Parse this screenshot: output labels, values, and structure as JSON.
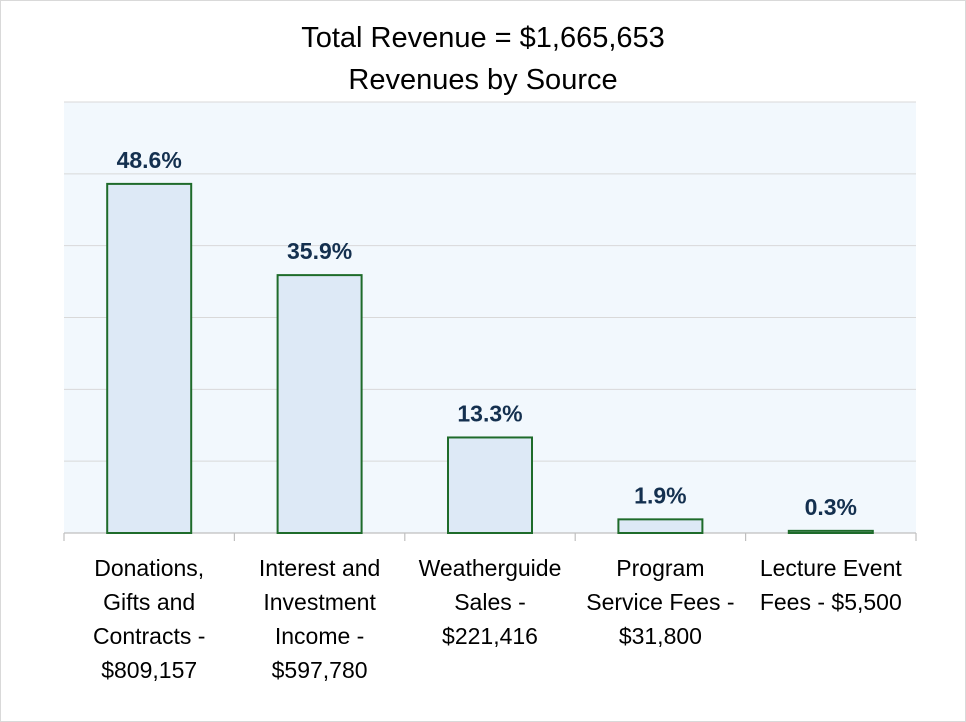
{
  "chart_data": {
    "type": "bar",
    "title_lines": [
      "Total Revenue = $1,665,653",
      "Revenues by Source"
    ],
    "categories": [
      "Donations, Gifts and Contracts - $809,157",
      "Interest and Investment Income - $597,780",
      "Weatherguide Sales - $221,416",
      "Program Service Fees - $31,800",
      "Lecture Event Fees - $5,500"
    ],
    "category_lines": [
      [
        "Donations,",
        "Gifts and",
        "Contracts -",
        "$809,157"
      ],
      [
        "Interest and",
        "Investment",
        "Income -",
        "$597,780"
      ],
      [
        "Weatherguide",
        "Sales -",
        "$221,416"
      ],
      [
        "Program",
        "Service Fees -",
        "$31,800"
      ],
      [
        "Lecture Event",
        "Fees - $5,500"
      ]
    ],
    "values": [
      48.6,
      35.9,
      13.3,
      1.9,
      0.3
    ],
    "data_labels": [
      "48.6%",
      "35.9%",
      "13.3%",
      "1.9%",
      "0.3%"
    ],
    "xlabel": "",
    "ylabel": "",
    "ylim": [
      0,
      60
    ],
    "grid": true,
    "legend": "none",
    "colors": {
      "bar_fill": "#dde9f6",
      "bar_stroke": "#1e6b2a",
      "label_color": "#14304f",
      "plot_bg": "#f2f8fd",
      "grid": "#d9d9d9"
    }
  }
}
